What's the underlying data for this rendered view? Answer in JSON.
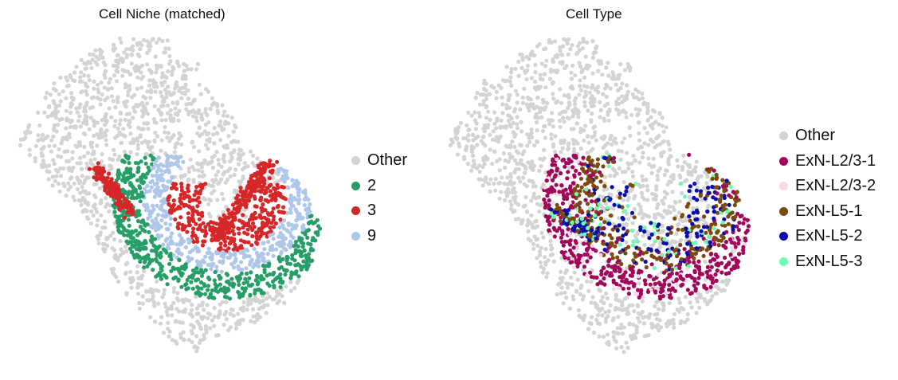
{
  "figure": {
    "left_panel": {
      "title": "Cell Niche (matched)",
      "legend": [
        {
          "label": "Other",
          "color": "#d3d3d3"
        },
        {
          "label": "2",
          "color": "#279e68"
        },
        {
          "label": "3",
          "color": "#d62728"
        },
        {
          "label": "9",
          "color": "#aec7e8"
        }
      ]
    },
    "right_panel": {
      "title": "Cell Type",
      "legend": [
        {
          "label": "Other",
          "color": "#d3d3d3"
        },
        {
          "label": "ExN-L2/3-1",
          "color": "#a0075a"
        },
        {
          "label": "ExN-L2/3-2",
          "color": "#f9d9e6"
        },
        {
          "label": "ExN-L5-1",
          "color": "#7b4a0c"
        },
        {
          "label": "ExN-L5-2",
          "color": "#0a0ea8"
        },
        {
          "label": "ExN-L5-3",
          "color": "#6ffbb4"
        }
      ]
    }
  },
  "chart_data": [
    {
      "type": "scatter",
      "title": "Cell Niche (matched)",
      "xlabel": "",
      "ylabel": "",
      "grid": false,
      "legend_position": "right",
      "categories": [
        "Other",
        "2",
        "3",
        "9"
      ],
      "colors": {
        "Other": "#d3d3d3",
        "2": "#279e68",
        "3": "#d62728",
        "9": "#aec7e8"
      }
    },
    {
      "type": "scatter",
      "title": "Cell Type",
      "xlabel": "",
      "ylabel": "",
      "grid": false,
      "legend_position": "right",
      "categories": [
        "Other",
        "ExN-L2/3-1",
        "ExN-L2/3-2",
        "ExN-L5-1",
        "ExN-L5-2",
        "ExN-L5-3"
      ],
      "colors": {
        "Other": "#d3d3d3",
        "ExN-L2/3-1": "#a0075a",
        "ExN-L2/3-2": "#f9d9e6",
        "ExN-L5-1": "#7b4a0c",
        "ExN-L5-2": "#0a0ea8",
        "ExN-L5-3": "#6ffbb4"
      }
    }
  ]
}
